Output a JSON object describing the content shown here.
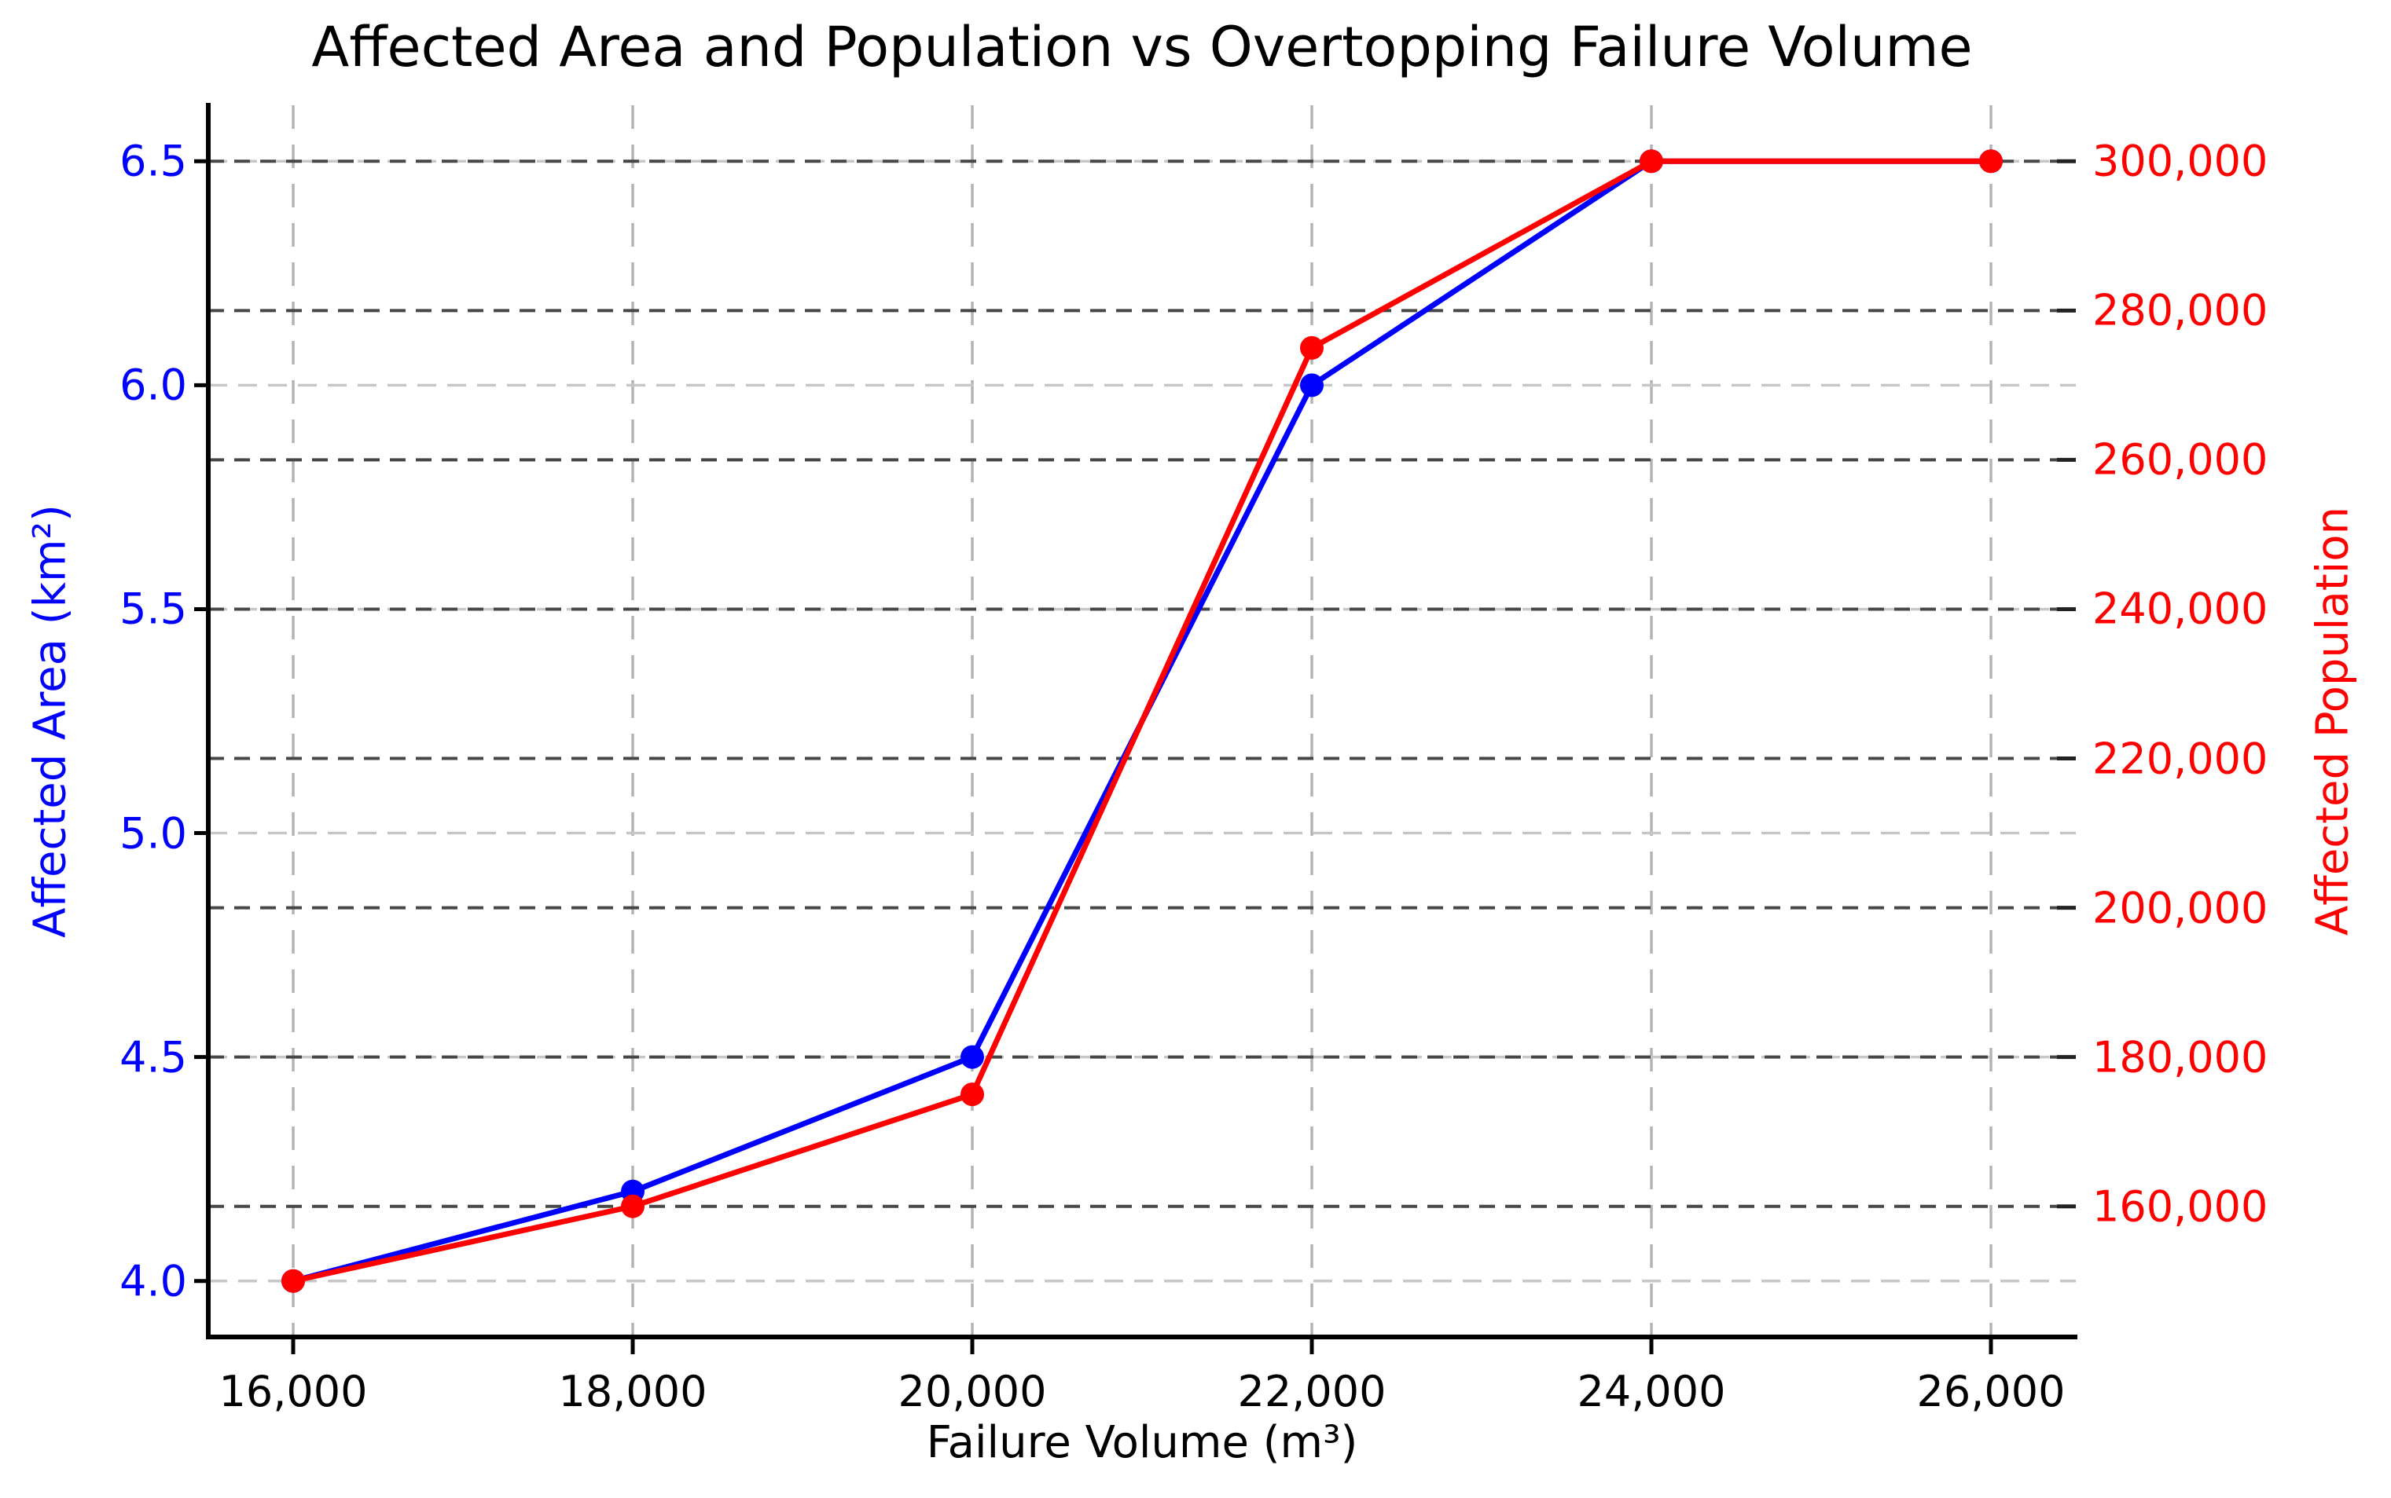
{
  "title": "Affected Area and Population vs Overtopping Failure Volume",
  "axes": {
    "x": {
      "label": "Failure Volume (m³)",
      "tick_values": [
        16000,
        18000,
        20000,
        22000,
        24000,
        26000
      ],
      "tick_labels": [
        "16,000",
        "18,000",
        "20,000",
        "22,000",
        "24,000",
        "26,000"
      ],
      "range": [
        15500,
        26500
      ]
    },
    "y_left": {
      "label": "Affected Area (km²)",
      "color": "#0000ff",
      "tick_values": [
        4.0,
        4.5,
        5.0,
        5.5,
        6.0,
        6.5
      ],
      "tick_labels": [
        "4.0",
        "4.5",
        "5.0",
        "5.5",
        "6.0",
        "6.5"
      ],
      "range": [
        3.875,
        6.625
      ]
    },
    "y_right": {
      "label": "Affected Population",
      "color": "#ff0000",
      "tick_values": [
        160000,
        180000,
        200000,
        220000,
        240000,
        260000,
        280000,
        300000
      ],
      "tick_labels": [
        "160,000",
        "180,000",
        "200,000",
        "220,000",
        "240,000",
        "260,000",
        "280,000",
        "300,000"
      ],
      "range": [
        142500,
        307500
      ]
    }
  },
  "grid": {
    "vertical_color": "#b3b3b3",
    "left_horizontal_color": "#c7c7c7",
    "right_horizontal_color": "#474747",
    "spine_color": "#000000"
  },
  "chart_data": {
    "type": "line",
    "title": "Affected Area and Population vs Overtopping Failure Volume",
    "xlabel": "Failure Volume (m³)",
    "x": [
      16000,
      18000,
      20000,
      22000,
      24000,
      26000
    ],
    "series": [
      {
        "name": "Affected Area (km²)",
        "axis": "left",
        "color": "#0000ff",
        "marker": "circle",
        "values": [
          4.0,
          4.2,
          4.5,
          6.0,
          6.5,
          6.5
        ],
        "ylim": [
          3.875,
          6.625
        ]
      },
      {
        "name": "Affected Population",
        "axis": "right",
        "color": "#ff0000",
        "marker": "circle",
        "values": [
          150000,
          160000,
          175000,
          275000,
          300000,
          300000
        ],
        "ylim": [
          142500,
          307500
        ]
      }
    ],
    "grid": "both-y-dashed-and-x-dashed",
    "legend": "none"
  }
}
